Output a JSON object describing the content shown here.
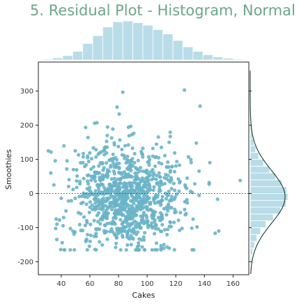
{
  "chart_data": {
    "type": "scatter",
    "title": "5. Residual Plot - Histogram, Normal",
    "xlabel": "Cakes",
    "ylabel": "Smoothies",
    "xlim": [
      24,
      171
    ],
    "ylim": [
      -238,
      385
    ],
    "x_ticks": [
      40,
      60,
      80,
      100,
      120,
      140,
      160
    ],
    "y_ticks": [
      -200,
      -100,
      0,
      100,
      200,
      300
    ],
    "reference_line": {
      "y": 0,
      "style": "dotted"
    },
    "grid": false,
    "n_points": 1000,
    "point_color": "#6ab4c8",
    "hist_color": "#b9dde8",
    "curve_color": "#1c3a34",
    "x_distribution": {
      "mean": 85,
      "sd": 20
    },
    "residual_distribution": {
      "mean": -10,
      "sd": 78
    },
    "top_hist": {
      "bin_edges": [
        20,
        27,
        34,
        41,
        48,
        55,
        62,
        69,
        76,
        83,
        90,
        97,
        104,
        111,
        118,
        125,
        132,
        139,
        146,
        153,
        160,
        167,
        174
      ],
      "counts": [
        1,
        2,
        5,
        10,
        20,
        38,
        56,
        76,
        88,
        90,
        86,
        80,
        70,
        60,
        45,
        30,
        20,
        12,
        7,
        4,
        2,
        1
      ]
    },
    "right_hist": {
      "bin_edges": [
        -200,
        -180,
        -160,
        -140,
        -120,
        -100,
        -80,
        -60,
        -40,
        -20,
        0,
        20,
        40,
        60,
        80,
        100,
        120,
        140,
        160,
        180,
        200,
        220,
        240,
        260,
        280,
        300
      ],
      "counts": [
        2,
        4,
        7,
        11,
        17,
        26,
        38,
        50,
        59,
        62,
        60,
        52,
        42,
        32,
        22,
        14,
        9,
        6,
        4,
        3,
        2,
        1,
        1,
        1,
        1
      ]
    },
    "notable_points": [
      {
        "x": 126,
        "y": 303
      },
      {
        "x": 83,
        "y": 297
      },
      {
        "x": 137,
        "y": 256
      },
      {
        "x": 79,
        "y": 253
      },
      {
        "x": 165,
        "y": 38
      },
      {
        "x": 31,
        "y": 125
      },
      {
        "x": 37,
        "y": -90
      },
      {
        "x": 78,
        "y": -158
      },
      {
        "x": 114,
        "y": -157
      },
      {
        "x": 150,
        "y": -110
      }
    ]
  }
}
